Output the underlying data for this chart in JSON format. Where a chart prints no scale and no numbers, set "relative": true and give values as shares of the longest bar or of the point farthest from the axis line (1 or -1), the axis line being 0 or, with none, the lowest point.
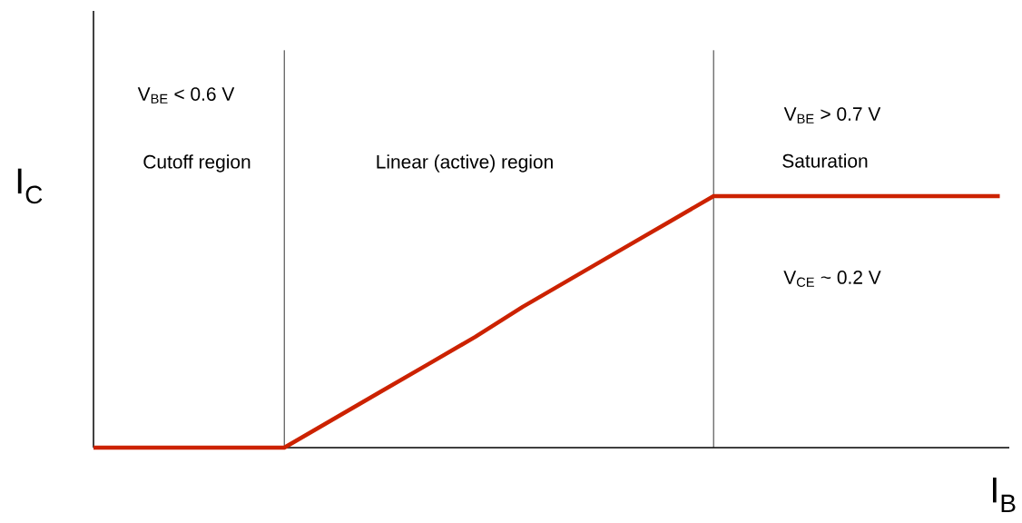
{
  "chart_data": {
    "type": "line",
    "relative": true,
    "xlabel": "I$_{B}$",
    "ylabel": "I$_{C}$",
    "categories": [
      null,
      null,
      null,
      null,
      null,
      null,
      null,
      null,
      null,
      null,
      null,
      null,
      null,
      null,
      null,
      null,
      null,
      null,
      null,
      null
    ],
    "series": [
      {
        "color": "#cc2200",
        "values": [
          0,
          0,
          0,
          0,
          0,
          0.11,
          0.22,
          0.33,
          0.44,
          0.56,
          0.67,
          0.78,
          0.89,
          1,
          1,
          1,
          1,
          1,
          1,
          1
        ]
      }
    ],
    "annotations": [
      "V$_{BE}$ < 0.6 V",
      "Cutoff region",
      "Linear (active) region",
      "V$_{BE}$ > 0.7 V",
      "Saturation",
      "V$_{CE}$ ~ 0.2 V"
    ],
    "marker": "none",
    "line_style": "solid"
  }
}
